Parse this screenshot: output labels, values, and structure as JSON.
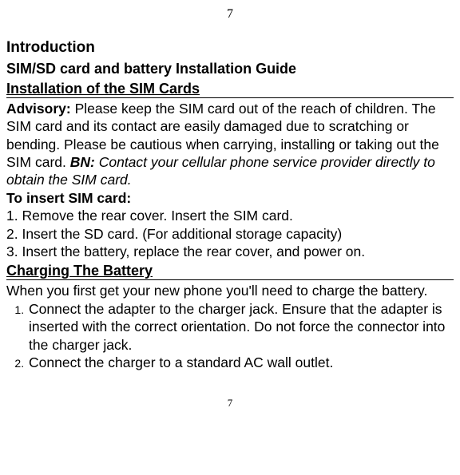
{
  "page_number_top": "7",
  "page_number_bottom": "7",
  "headings": {
    "intro": "Introduction",
    "subtitle": "SIM/SD card and battery Installation Guide",
    "section_sim": "Installation of the SIM Cards",
    "section_charge": "Charging The Battery"
  },
  "advisory": {
    "label": "Advisory:",
    "text": " Please keep the SIM card out of the reach of children. The SIM card and its contact are easily damaged due to scratching or bending. Please be cautious when carrying, installing or taking out the SIM card. ",
    "bn_label": "BN:",
    "bn_text": " Contact your cellular phone service provider directly to obtain the SIM card."
  },
  "insert_sim": {
    "heading": "To insert SIM card:",
    "step1": "1. Remove the rear cover. Insert the SIM card.",
    "step2": "2. Insert the SD card. (For additional storage capacity)",
    "step3": "3. Insert the battery, replace the rear cover, and power on."
  },
  "charging": {
    "intro": "When you first get your new phone you'll need to charge the battery.",
    "step1": "Connect the adapter to the charger jack. Ensure that the adapter is inserted with the correct orientation. Do not force the connector into the charger jack.",
    "step2": "Connect the charger to a standard AC wall outlet."
  }
}
